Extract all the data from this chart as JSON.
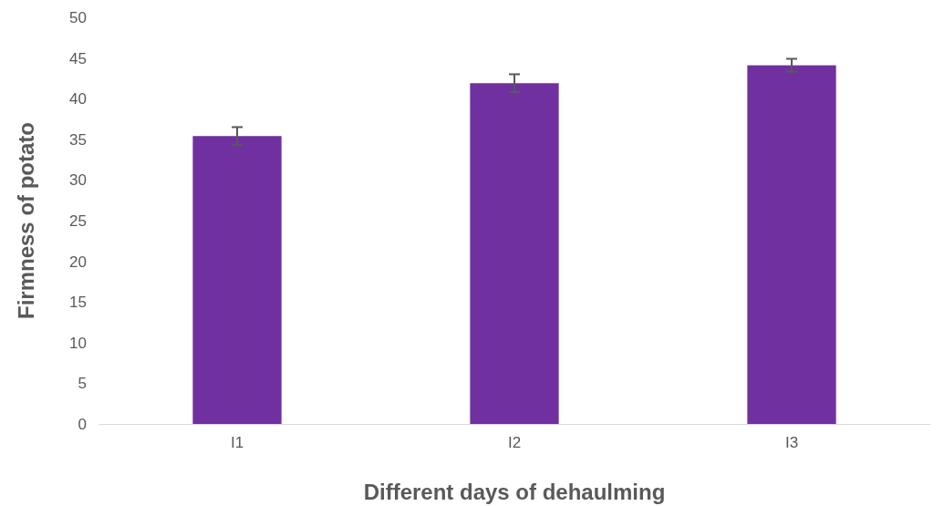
{
  "chart_data": {
    "type": "bar",
    "xlabel": "Different days of dehaulming",
    "ylabel": "Firmness of potato",
    "categories": [
      "I1",
      "I2",
      "I3"
    ],
    "values": [
      35.4,
      41.9,
      44.1
    ],
    "errors": [
      1.1,
      1.1,
      0.8
    ],
    "color": "#7030a0",
    "ylim": [
      0,
      50
    ],
    "yticks": [
      0,
      5,
      10,
      15,
      20,
      25,
      30,
      35,
      40,
      45,
      50
    ],
    "grid": false
  }
}
